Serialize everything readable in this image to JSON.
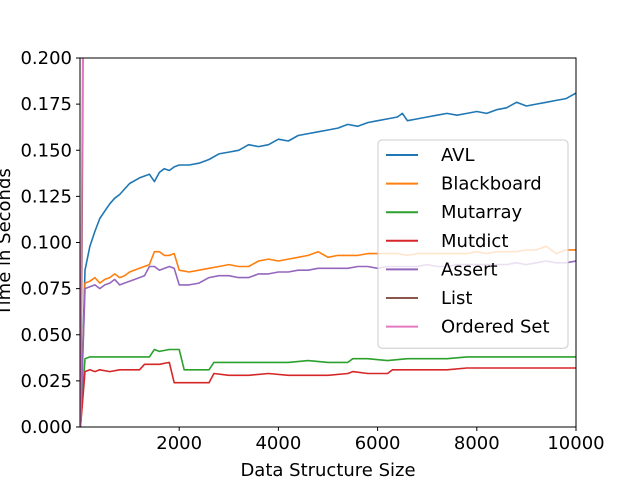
{
  "chart_data": {
    "type": "line",
    "xlabel": "Data Structure Size",
    "ylabel": "Time in Seconds",
    "xlim": [
      0,
      10000
    ],
    "ylim": [
      0.0,
      0.2
    ],
    "xticks": [
      2000,
      4000,
      6000,
      8000,
      10000
    ],
    "xtick_labels": [
      "2000",
      "4000",
      "6000",
      "8000",
      "10000"
    ],
    "yticks": [
      0.0,
      0.025,
      0.05,
      0.075,
      0.1,
      0.125,
      0.15,
      0.175,
      0.2
    ],
    "ytick_labels": [
      "0.000",
      "0.025",
      "0.050",
      "0.075",
      "0.100",
      "0.125",
      "0.150",
      "0.175",
      "0.200"
    ],
    "grid": false,
    "legend_position": "center-right",
    "series": [
      {
        "name": "AVL",
        "color": "#1f77b4",
        "x": [
          10,
          100,
          200,
          300,
          400,
          500,
          600,
          700,
          800,
          900,
          1000,
          1200,
          1400,
          1500,
          1600,
          1700,
          1800,
          1900,
          2000,
          2200,
          2400,
          2600,
          2800,
          3000,
          3200,
          3400,
          3600,
          3800,
          4000,
          4200,
          4400,
          4600,
          4800,
          5000,
          5200,
          5400,
          5600,
          5800,
          6000,
          6200,
          6400,
          6500,
          6600,
          6800,
          7000,
          7200,
          7400,
          7600,
          7800,
          8000,
          8200,
          8400,
          8600,
          8800,
          9000,
          9200,
          9400,
          9600,
          9800,
          10000
        ],
        "y": [
          0.0,
          0.085,
          0.098,
          0.106,
          0.113,
          0.117,
          0.121,
          0.124,
          0.126,
          0.129,
          0.132,
          0.135,
          0.137,
          0.133,
          0.138,
          0.14,
          0.139,
          0.141,
          0.142,
          0.142,
          0.143,
          0.145,
          0.148,
          0.149,
          0.15,
          0.153,
          0.152,
          0.153,
          0.156,
          0.155,
          0.158,
          0.159,
          0.16,
          0.161,
          0.162,
          0.164,
          0.163,
          0.165,
          0.166,
          0.167,
          0.168,
          0.17,
          0.166,
          0.167,
          0.168,
          0.169,
          0.17,
          0.169,
          0.17,
          0.171,
          0.17,
          0.172,
          0.173,
          0.176,
          0.174,
          0.175,
          0.176,
          0.177,
          0.178,
          0.181
        ]
      },
      {
        "name": "Blackboard",
        "color": "#ff7f0e",
        "x": [
          10,
          100,
          200,
          300,
          400,
          500,
          600,
          700,
          800,
          900,
          1000,
          1200,
          1400,
          1500,
          1600,
          1700,
          1800,
          1900,
          2000,
          2200,
          2400,
          2600,
          2800,
          3000,
          3200,
          3400,
          3600,
          3800,
          4000,
          4200,
          4400,
          4600,
          4800,
          5000,
          5200,
          5400,
          5600,
          5800,
          6000,
          6200,
          6400,
          6600,
          6800,
          7000,
          7200,
          7400,
          7600,
          7800,
          8000,
          8200,
          8400,
          8600,
          8800,
          9000,
          9200,
          9400,
          9600,
          9800,
          10000
        ],
        "y": [
          0.0,
          0.078,
          0.079,
          0.081,
          0.078,
          0.08,
          0.081,
          0.083,
          0.081,
          0.082,
          0.084,
          0.086,
          0.088,
          0.095,
          0.095,
          0.093,
          0.093,
          0.094,
          0.085,
          0.084,
          0.085,
          0.086,
          0.087,
          0.088,
          0.087,
          0.087,
          0.09,
          0.091,
          0.09,
          0.091,
          0.092,
          0.093,
          0.095,
          0.092,
          0.093,
          0.093,
          0.093,
          0.094,
          0.094,
          0.094,
          0.094,
          0.093,
          0.094,
          0.094,
          0.094,
          0.094,
          0.094,
          0.094,
          0.095,
          0.094,
          0.095,
          0.095,
          0.095,
          0.096,
          0.096,
          0.098,
          0.094,
          0.096,
          0.096
        ]
      },
      {
        "name": "Mutarray",
        "color": "#2ca02c",
        "x": [
          10,
          100,
          200,
          300,
          400,
          600,
          800,
          1000,
          1200,
          1400,
          1500,
          1600,
          1800,
          2000,
          2100,
          2200,
          2400,
          2600,
          2700,
          3000,
          3400,
          3800,
          4200,
          4600,
          5000,
          5400,
          5500,
          5800,
          6200,
          6600,
          7000,
          7400,
          7800,
          8000,
          8200,
          8600,
          9000,
          9400,
          9800,
          10000
        ],
        "y": [
          0.0,
          0.037,
          0.038,
          0.038,
          0.038,
          0.038,
          0.038,
          0.038,
          0.038,
          0.038,
          0.042,
          0.041,
          0.042,
          0.042,
          0.031,
          0.031,
          0.031,
          0.031,
          0.035,
          0.035,
          0.035,
          0.035,
          0.035,
          0.036,
          0.035,
          0.035,
          0.037,
          0.037,
          0.036,
          0.037,
          0.037,
          0.037,
          0.038,
          0.038,
          0.038,
          0.038,
          0.038,
          0.038,
          0.038,
          0.038
        ]
      },
      {
        "name": "Mutdict",
        "color": "#d62728",
        "x": [
          10,
          100,
          200,
          300,
          400,
          600,
          800,
          1000,
          1200,
          1300,
          1400,
          1500,
          1600,
          1800,
          1900,
          2000,
          2200,
          2400,
          2600,
          2700,
          3000,
          3400,
          3800,
          4200,
          4600,
          5000,
          5400,
          5500,
          5800,
          6200,
          6300,
          6600,
          7000,
          7400,
          7800,
          8000,
          8200,
          8600,
          9000,
          9400,
          9800,
          10000
        ],
        "y": [
          0.0,
          0.03,
          0.031,
          0.03,
          0.031,
          0.03,
          0.031,
          0.031,
          0.031,
          0.034,
          0.034,
          0.034,
          0.034,
          0.035,
          0.024,
          0.024,
          0.024,
          0.024,
          0.024,
          0.029,
          0.028,
          0.028,
          0.029,
          0.028,
          0.028,
          0.028,
          0.029,
          0.03,
          0.029,
          0.029,
          0.031,
          0.031,
          0.031,
          0.031,
          0.032,
          0.032,
          0.032,
          0.032,
          0.032,
          0.032,
          0.032,
          0.032
        ]
      },
      {
        "name": "Assert",
        "color": "#9467bd",
        "x": [
          10,
          100,
          200,
          300,
          400,
          500,
          600,
          700,
          800,
          1000,
          1200,
          1300,
          1400,
          1500,
          1600,
          1800,
          1900,
          2000,
          2200,
          2400,
          2600,
          2800,
          3000,
          3200,
          3400,
          3600,
          3800,
          4000,
          4200,
          4400,
          4600,
          4800,
          5000,
          5200,
          5400,
          5600,
          5800,
          6000,
          6200,
          6400,
          6600,
          6800,
          7000,
          7200,
          7400,
          7600,
          7800,
          8000,
          8200,
          8400,
          8600,
          8800,
          9000,
          9200,
          9400,
          9600,
          9800,
          10000
        ],
        "y": [
          0.0,
          0.075,
          0.076,
          0.077,
          0.075,
          0.077,
          0.078,
          0.08,
          0.077,
          0.079,
          0.081,
          0.082,
          0.087,
          0.087,
          0.085,
          0.087,
          0.086,
          0.077,
          0.077,
          0.078,
          0.081,
          0.082,
          0.082,
          0.081,
          0.081,
          0.083,
          0.083,
          0.084,
          0.084,
          0.085,
          0.085,
          0.086,
          0.086,
          0.086,
          0.086,
          0.087,
          0.087,
          0.086,
          0.087,
          0.087,
          0.087,
          0.087,
          0.088,
          0.087,
          0.087,
          0.088,
          0.088,
          0.088,
          0.088,
          0.088,
          0.088,
          0.089,
          0.088,
          0.089,
          0.09,
          0.089,
          0.089,
          0.09
        ]
      },
      {
        "name": "List",
        "color": "#8c564b",
        "x": [
          10,
          40,
          60
        ],
        "y": [
          0.0,
          0.1,
          0.2
        ]
      },
      {
        "name": "Ordered Set",
        "color": "#e377c2",
        "x": [
          10,
          30,
          55
        ],
        "y": [
          0.0,
          0.1,
          0.2
        ]
      }
    ]
  }
}
